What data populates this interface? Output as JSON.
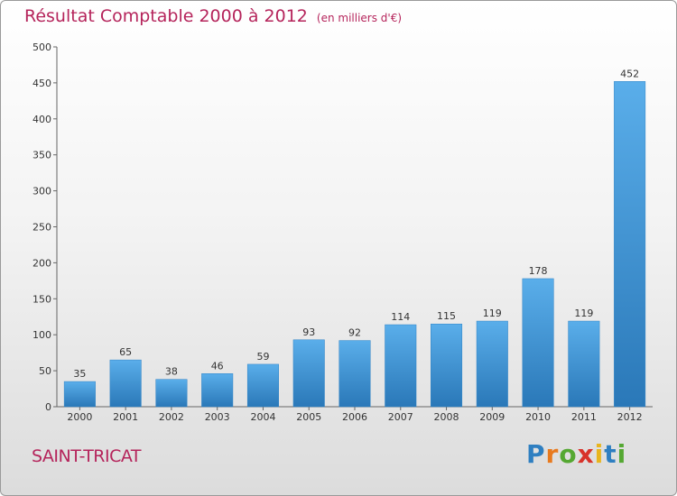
{
  "header": {
    "title": "Résultat Comptable 2000 à 2012",
    "unit": "(en milliers d'€)"
  },
  "footer": {
    "commune": "SAINT-TRICAT",
    "logo": "Proxiti"
  },
  "colors": {
    "title": "#b5245b",
    "bar_top": "#5aaeea",
    "bar_bottom": "#2a78b8"
  },
  "chart_data": {
    "type": "bar",
    "title": "Résultat Comptable 2000 à 2012",
    "xlabel": "",
    "ylabel": "",
    "categories": [
      "2000",
      "2001",
      "2002",
      "2003",
      "2004",
      "2005",
      "2006",
      "2007",
      "2008",
      "2009",
      "2010",
      "2011",
      "2012"
    ],
    "values": [
      35,
      65,
      38,
      46,
      59,
      93,
      92,
      114,
      115,
      119,
      178,
      119,
      452
    ],
    "ylim": [
      0,
      500
    ],
    "yticks": [
      0,
      50,
      100,
      150,
      200,
      250,
      300,
      350,
      400,
      450,
      500
    ],
    "grid": false
  }
}
